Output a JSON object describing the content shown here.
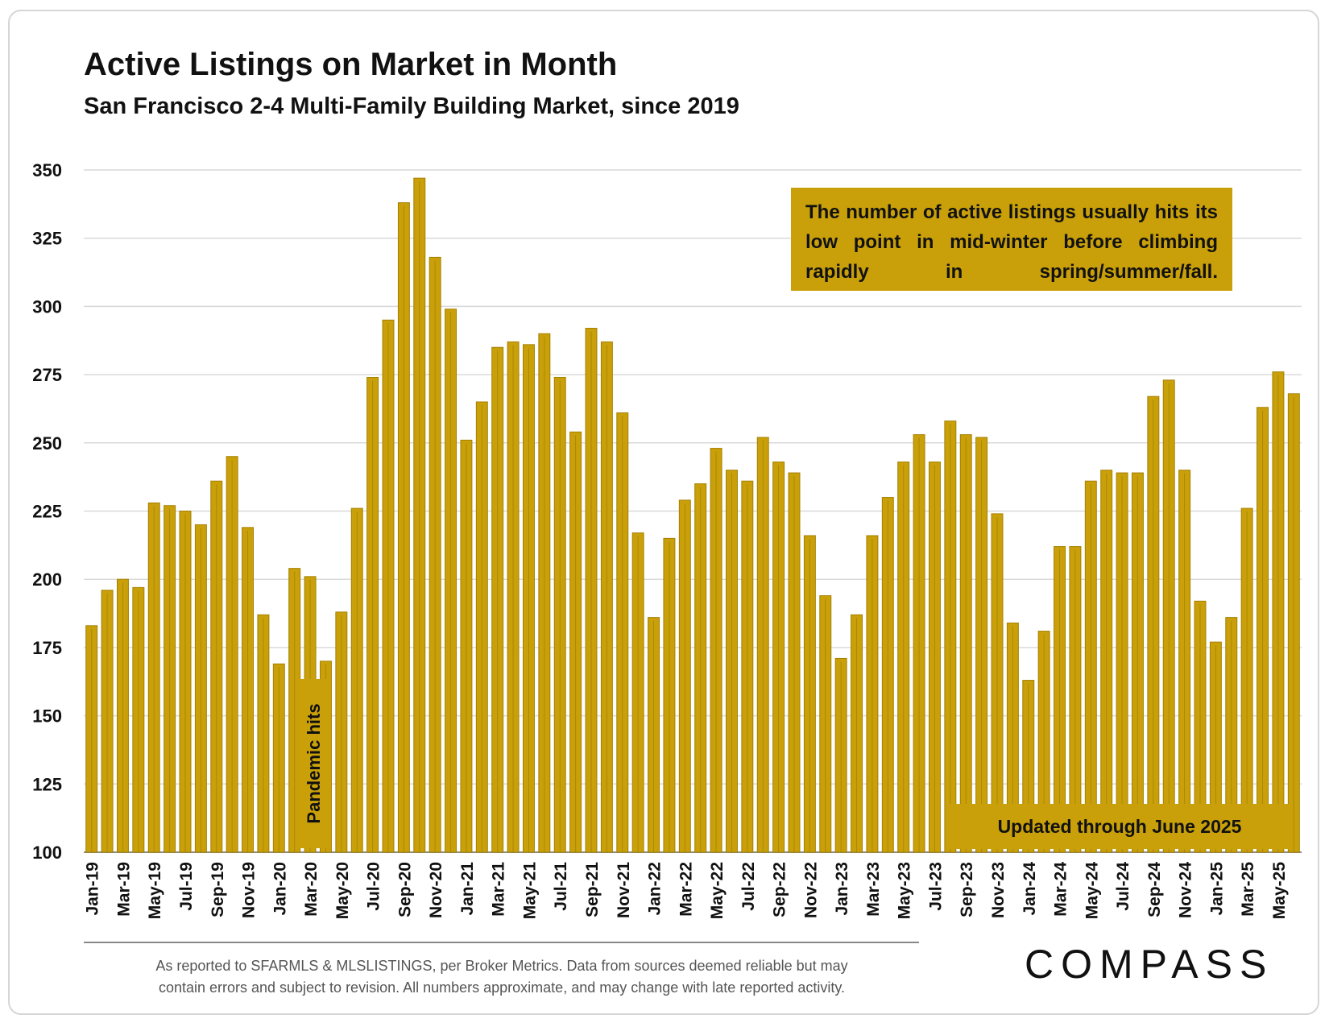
{
  "header": {
    "title": "Active Listings on Market in Month",
    "subtitle": "San Francisco 2-4 Multi-Family Building Market, since 2019"
  },
  "annotations": {
    "callout": "The number of active listings usually hits its low point in mid-winter before climbing rapidly in spring/summer/fall.",
    "updated": "Updated through June 2025",
    "pandemic": "Pandemic hits"
  },
  "footer": {
    "note_line1": "As reported to SFARMLS & MLSLISTINGS, per Broker Metrics. Data from sources deemed reliable but may",
    "note_line2": "contain errors and subject to revision. All numbers approximate, and may change with late reported activity.",
    "logo": "COMPASS"
  },
  "colors": {
    "bar": "#c9a009",
    "bar_edge": "#a58000",
    "grid": "#d9d9d9",
    "text": "#111111"
  },
  "chart_data": {
    "type": "bar",
    "title": "Active Listings on Market in Month",
    "subtitle": "San Francisco 2-4 Multi-Family Building Market, since 2019",
    "xlabel": "",
    "ylabel": "",
    "ylim": [
      100,
      350
    ],
    "yticks": [
      100,
      125,
      150,
      175,
      200,
      225,
      250,
      275,
      300,
      325,
      350
    ],
    "grid": true,
    "legend": "none",
    "categories": [
      "Jan-19",
      "Feb-19",
      "Mar-19",
      "Apr-19",
      "May-19",
      "Jun-19",
      "Jul-19",
      "Aug-19",
      "Sep-19",
      "Oct-19",
      "Nov-19",
      "Dec-19",
      "Jan-20",
      "Feb-20",
      "Mar-20",
      "Apr-20",
      "May-20",
      "Jun-20",
      "Jul-20",
      "Aug-20",
      "Sep-20",
      "Oct-20",
      "Nov-20",
      "Dec-20",
      "Jan-21",
      "Feb-21",
      "Mar-21",
      "Apr-21",
      "May-21",
      "Jun-21",
      "Jul-21",
      "Aug-21",
      "Sep-21",
      "Oct-21",
      "Nov-21",
      "Dec-21",
      "Jan-22",
      "Feb-22",
      "Mar-22",
      "Apr-22",
      "May-22",
      "Jun-22",
      "Jul-22",
      "Aug-22",
      "Sep-22",
      "Oct-22",
      "Nov-22",
      "Dec-22",
      "Jan-23",
      "Feb-23",
      "Mar-23",
      "Apr-23",
      "May-23",
      "Jun-23",
      "Jul-23",
      "Aug-23",
      "Sep-23",
      "Oct-23",
      "Nov-23",
      "Dec-23",
      "Jan-24",
      "Feb-24",
      "Mar-24",
      "Apr-24",
      "May-24",
      "Jun-24",
      "Jul-24",
      "Aug-24",
      "Sep-24",
      "Oct-24",
      "Nov-24",
      "Dec-24",
      "Jan-25",
      "Feb-25",
      "Mar-25",
      "Apr-25",
      "May-25",
      "Jun-25"
    ],
    "tick_labels": [
      "Jan-19",
      "Mar-19",
      "May-19",
      "Jul-19",
      "Sep-19",
      "Nov-19",
      "Jan-20",
      "Mar-20",
      "May-20",
      "Jul-20",
      "Sep-20",
      "Nov-20",
      "Jan-21",
      "Mar-21",
      "May-21",
      "Jul-21",
      "Sep-21",
      "Nov-21",
      "Jan-22",
      "Mar-22",
      "May-22",
      "Jul-22",
      "Sep-22",
      "Nov-22",
      "Jan-23",
      "Mar-23",
      "May-23",
      "Jul-23",
      "Sep-23",
      "Nov-23",
      "Jan-24",
      "Mar-24",
      "May-24",
      "Jul-24",
      "Sep-24",
      "Nov-24",
      "Jan-25",
      "Mar-25",
      "May-25"
    ],
    "values": [
      183,
      196,
      200,
      197,
      228,
      227,
      225,
      220,
      236,
      245,
      219,
      187,
      169,
      204,
      201,
      170,
      188,
      226,
      274,
      295,
      338,
      347,
      318,
      299,
      251,
      265,
      285,
      287,
      286,
      290,
      274,
      254,
      292,
      287,
      261,
      217,
      186,
      215,
      229,
      235,
      248,
      240,
      236,
      252,
      243,
      239,
      216,
      194,
      171,
      187,
      216,
      230,
      243,
      253,
      243,
      258,
      253,
      252,
      224,
      184,
      163,
      181,
      212,
      212,
      236,
      240,
      239,
      239,
      267,
      273,
      240,
      192,
      177,
      186,
      226,
      263,
      276,
      268
    ]
  }
}
